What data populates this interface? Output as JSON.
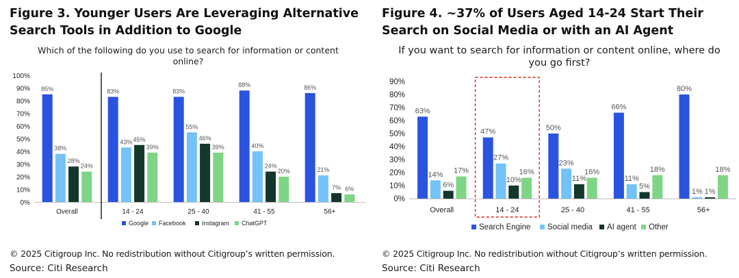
{
  "figures": [
    {
      "title": "Figure 3. Younger Users Are Leveraging Alternative Search Tools in Addition to Google",
      "question": "Which of the following do you use to search for information or content online?",
      "copyright": "© 2025 Citigroup Inc. No redistribution without Citigroup’s written permission.",
      "source": "Source: Citi Research"
    },
    {
      "title": "Figure 4. ~37% of Users Aged 14-24 Start Their Search on Social Media or with an AI Agent",
      "question": "If you want to search for information or content online, where do you go first?",
      "copyright": "© 2025 Citigroup Inc. No redistribution without Citigroup’s written permission.",
      "source": "Source: Citi Research"
    }
  ],
  "chart_data": [
    {
      "type": "bar",
      "title": "Figure 3. Younger Users Are Leveraging Alternative Search Tools in Addition to Google",
      "subtitle": "Which of the following do you use to search for information or content online?",
      "categories": [
        "Overall",
        "14 - 24",
        "25 - 40",
        "41 - 55",
        "56+"
      ],
      "series": [
        {
          "name": "Google",
          "color": "#2a53e0",
          "values": [
            85,
            83,
            83,
            88,
            86
          ]
        },
        {
          "name": "Facebook",
          "color": "#73c2f8",
          "values": [
            38,
            43,
            55,
            40,
            21
          ]
        },
        {
          "name": "Instagram",
          "color": "#15362b",
          "values": [
            28,
            45,
            46,
            24,
            7
          ]
        },
        {
          "name": "ChatGPT",
          "color": "#7fd586",
          "values": [
            24,
            39,
            39,
            20,
            6
          ]
        }
      ],
      "ylim": [
        0,
        100
      ],
      "yticks": [
        "0%",
        "10%",
        "20%",
        "30%",
        "40%",
        "50%",
        "60%",
        "70%",
        "80%",
        "90%",
        "100%"
      ],
      "value_suffix": "%",
      "grid": false,
      "legend": "bottom",
      "separator_after_first_category": true
    },
    {
      "type": "bar",
      "title": "Figure 4. ~37% of Users Aged 14-24 Start Their Search on Social Media or with an AI Agent",
      "subtitle": "If you want to search for information or content online, where do you go first?",
      "categories": [
        "Overall",
        "14 - 24",
        "25 - 40",
        "41 - 55",
        "56+"
      ],
      "series": [
        {
          "name": "Search Engine",
          "color": "#2a53e0",
          "values": [
            63,
            47,
            50,
            66,
            80
          ]
        },
        {
          "name": "Social media",
          "color": "#73c2f8",
          "values": [
            14,
            27,
            23,
            11,
            1
          ]
        },
        {
          "name": "AI agent",
          "color": "#15362b",
          "values": [
            6,
            10,
            11,
            5,
            1
          ]
        },
        {
          "name": "Other",
          "color": "#7fd586",
          "values": [
            17,
            16,
            16,
            18,
            18
          ]
        }
      ],
      "ylim": [
        0,
        90
      ],
      "yticks": [
        "0%",
        "10%",
        "20%",
        "30%",
        "40%",
        "50%",
        "60%",
        "70%",
        "80%",
        "90%"
      ],
      "value_suffix": "%",
      "grid": false,
      "legend": "bottom",
      "highlight_category": "14 - 24",
      "highlight_color": "#e0211d"
    }
  ]
}
